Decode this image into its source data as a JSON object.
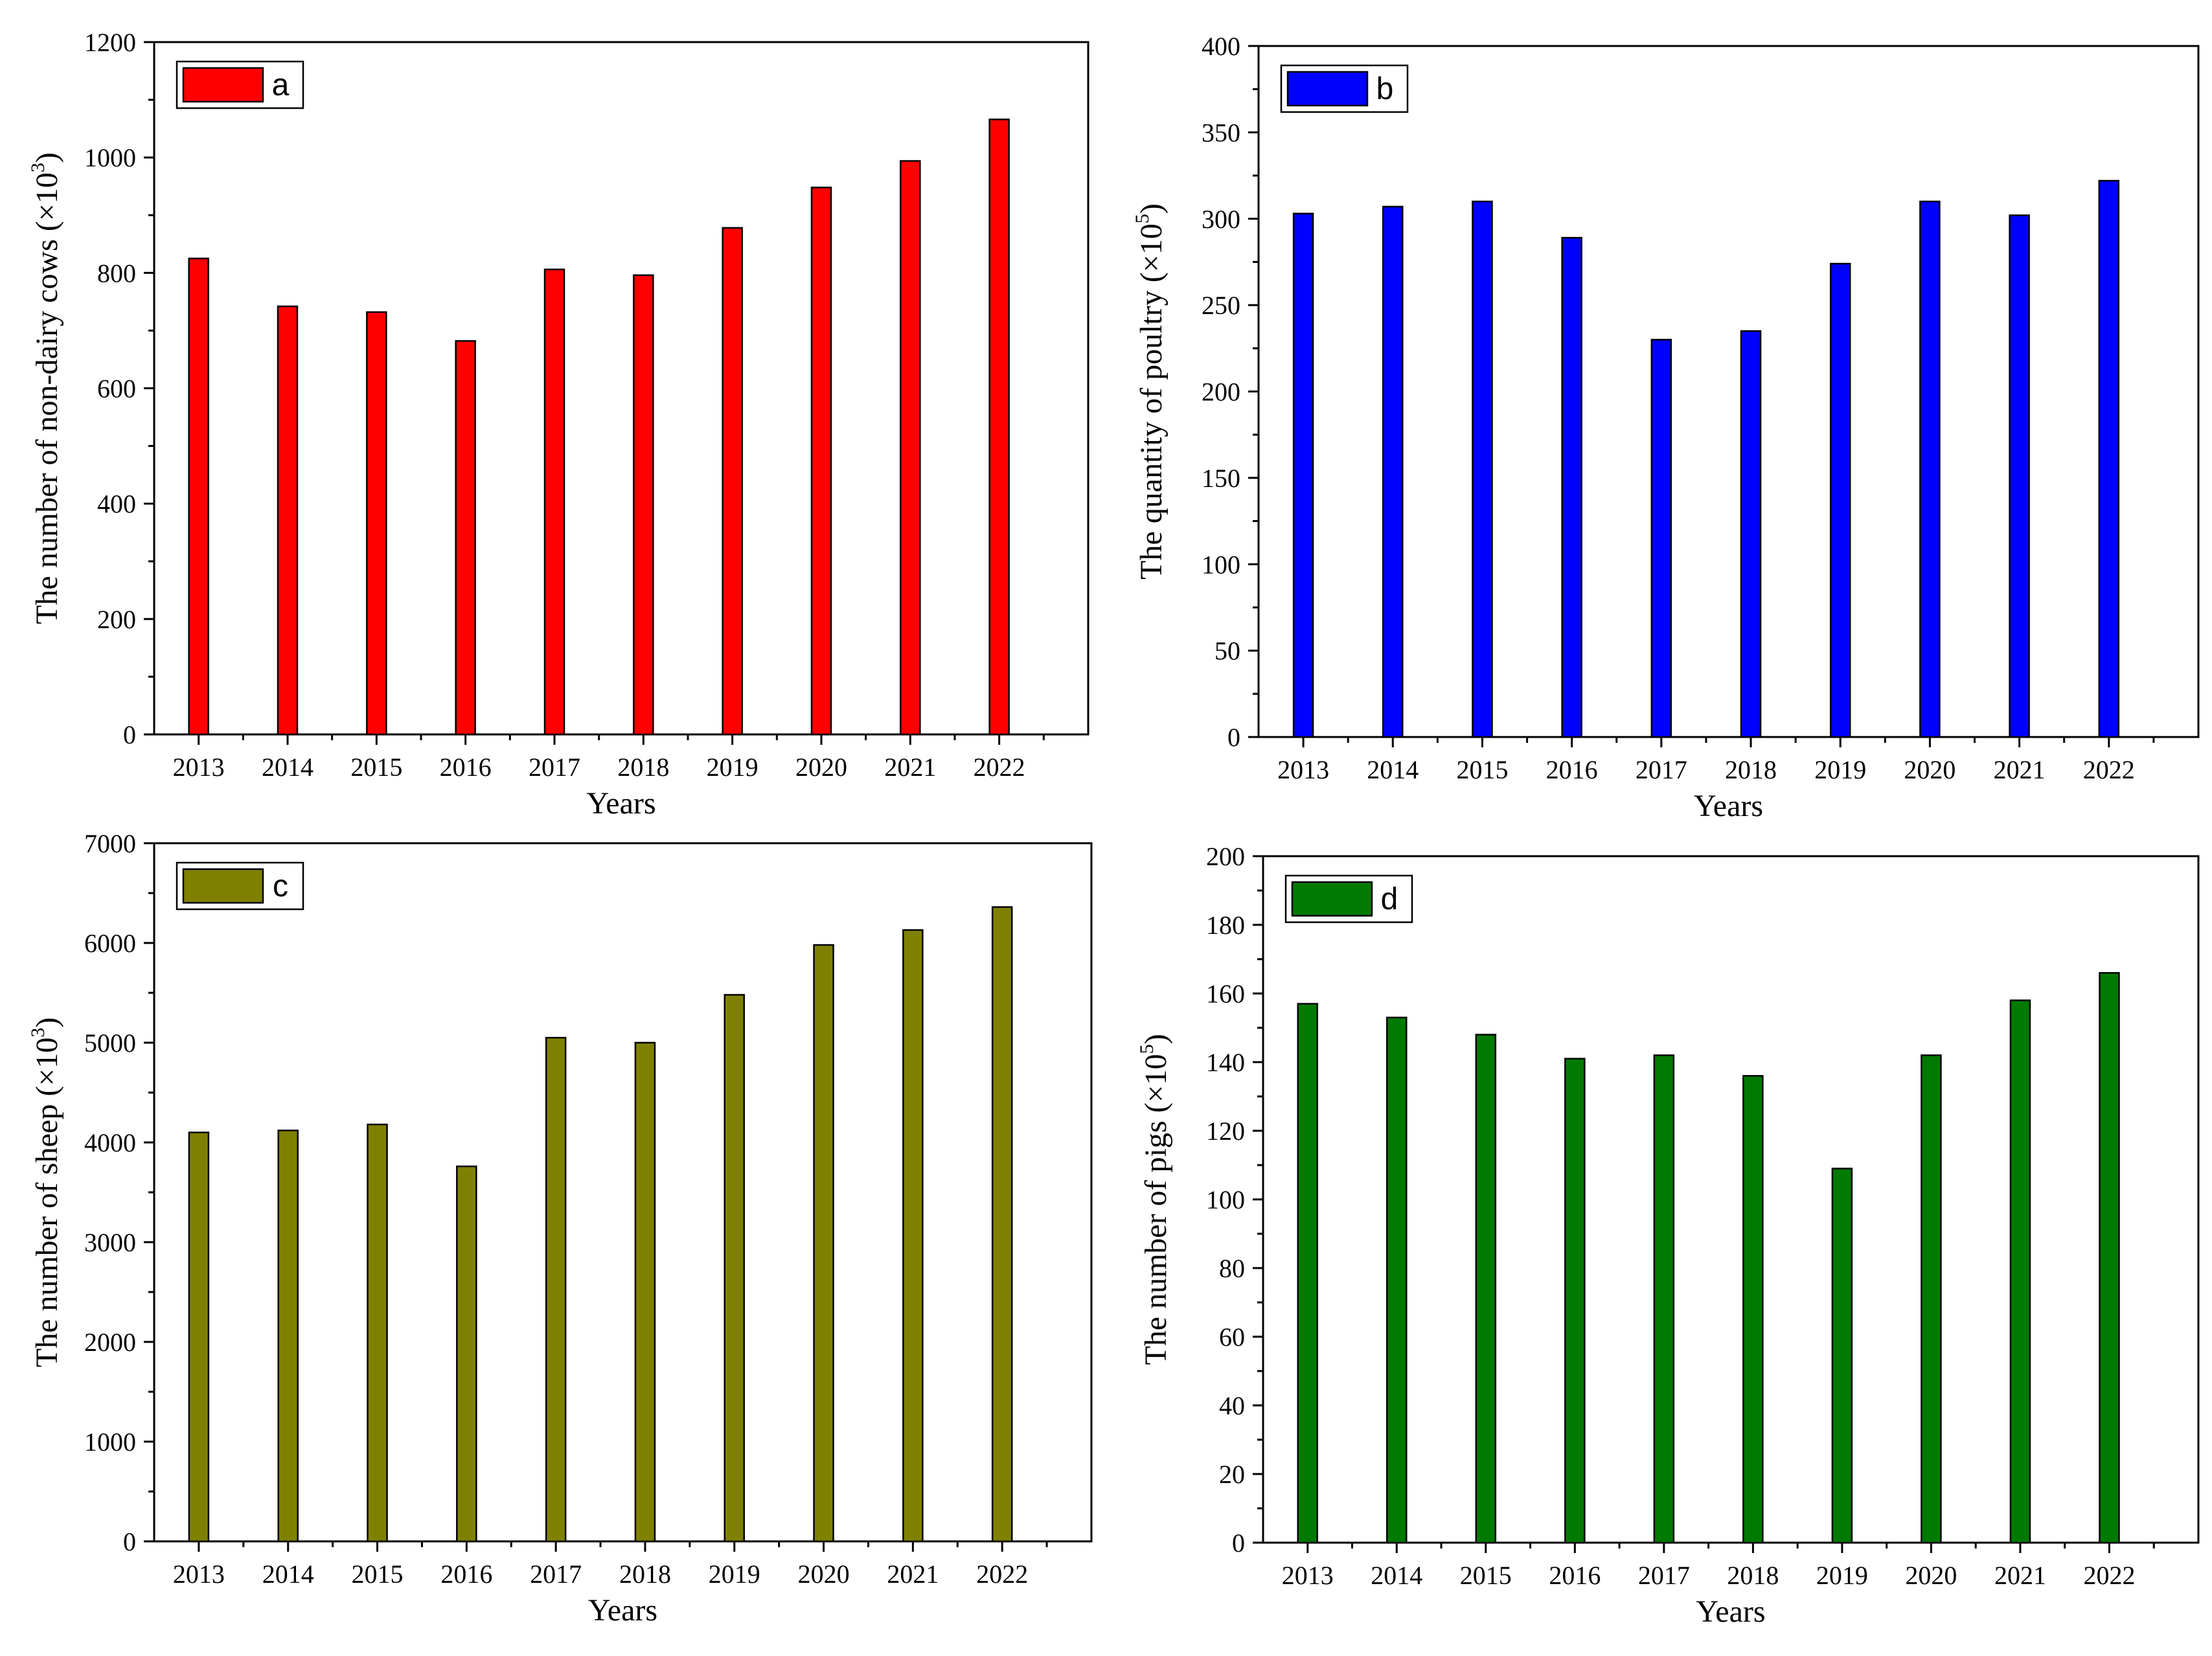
{
  "colors": {
    "panel_a": "#ff0000",
    "panel_b": "#0000ff",
    "panel_c": "#808000",
    "panel_d": "#007a00",
    "axis": "#000000"
  },
  "chart_data": [
    {
      "id": "a",
      "type": "bar",
      "title": "",
      "legend": "a",
      "legend_position": "top-left",
      "xlabel": "Years",
      "ylabel_main": "The number of non-dairy cows (×10",
      "ylabel_sup": "3",
      "ylabel_end": ")",
      "categories": [
        "2013",
        "2014",
        "2015",
        "2016",
        "2017",
        "2018",
        "2019",
        "2020",
        "2021",
        "2022"
      ],
      "values": [
        825,
        742,
        732,
        682,
        806,
        796,
        878,
        948,
        994,
        1066
      ],
      "ylim": [
        0,
        1200
      ],
      "yticks": [
        0,
        200,
        400,
        600,
        800,
        1000,
        1200
      ],
      "grid": false
    },
    {
      "id": "b",
      "type": "bar",
      "title": "",
      "legend": "b",
      "legend_position": "top-left",
      "xlabel": "Years",
      "ylabel_main": "The quantity of poultry (×10",
      "ylabel_sup": "5",
      "ylabel_end": ")",
      "categories": [
        "2013",
        "2014",
        "2015",
        "2016",
        "2017",
        "2018",
        "2019",
        "2020",
        "2021",
        "2022"
      ],
      "values": [
        303,
        307,
        310,
        289,
        230,
        235,
        274,
        310,
        302,
        322
      ],
      "ylim": [
        0,
        400
      ],
      "yticks": [
        0,
        50,
        100,
        150,
        200,
        250,
        300,
        350,
        400
      ],
      "grid": false
    },
    {
      "id": "c",
      "type": "bar",
      "title": "",
      "legend": "c",
      "legend_position": "top-left",
      "xlabel": "Years",
      "ylabel_main": "The number of sheep (×10",
      "ylabel_sup": "3",
      "ylabel_end": ")",
      "categories": [
        "2013",
        "2014",
        "2015",
        "2016",
        "2017",
        "2018",
        "2019",
        "2020",
        "2021",
        "2022"
      ],
      "values": [
        4100,
        4120,
        4180,
        3760,
        5050,
        5000,
        5480,
        5980,
        6130,
        6360
      ],
      "ylim": [
        0,
        7000
      ],
      "yticks": [
        0,
        1000,
        2000,
        3000,
        4000,
        5000,
        6000,
        7000
      ],
      "grid": false
    },
    {
      "id": "d",
      "type": "bar",
      "title": "",
      "legend": "d",
      "legend_position": "top-left",
      "xlabel": "Years",
      "ylabel_main": "The number of pigs (×10",
      "ylabel_sup": "5",
      "ylabel_end": ")",
      "categories": [
        "2013",
        "2014",
        "2015",
        "2016",
        "2017",
        "2018",
        "2019",
        "2020",
        "2021",
        "2022"
      ],
      "values": [
        157,
        153,
        148,
        141,
        142,
        136,
        109,
        142,
        158,
        166
      ],
      "ylim": [
        0,
        200
      ],
      "yticks": [
        0,
        20,
        40,
        60,
        80,
        100,
        120,
        140,
        160,
        180,
        200
      ],
      "grid": false
    }
  ]
}
